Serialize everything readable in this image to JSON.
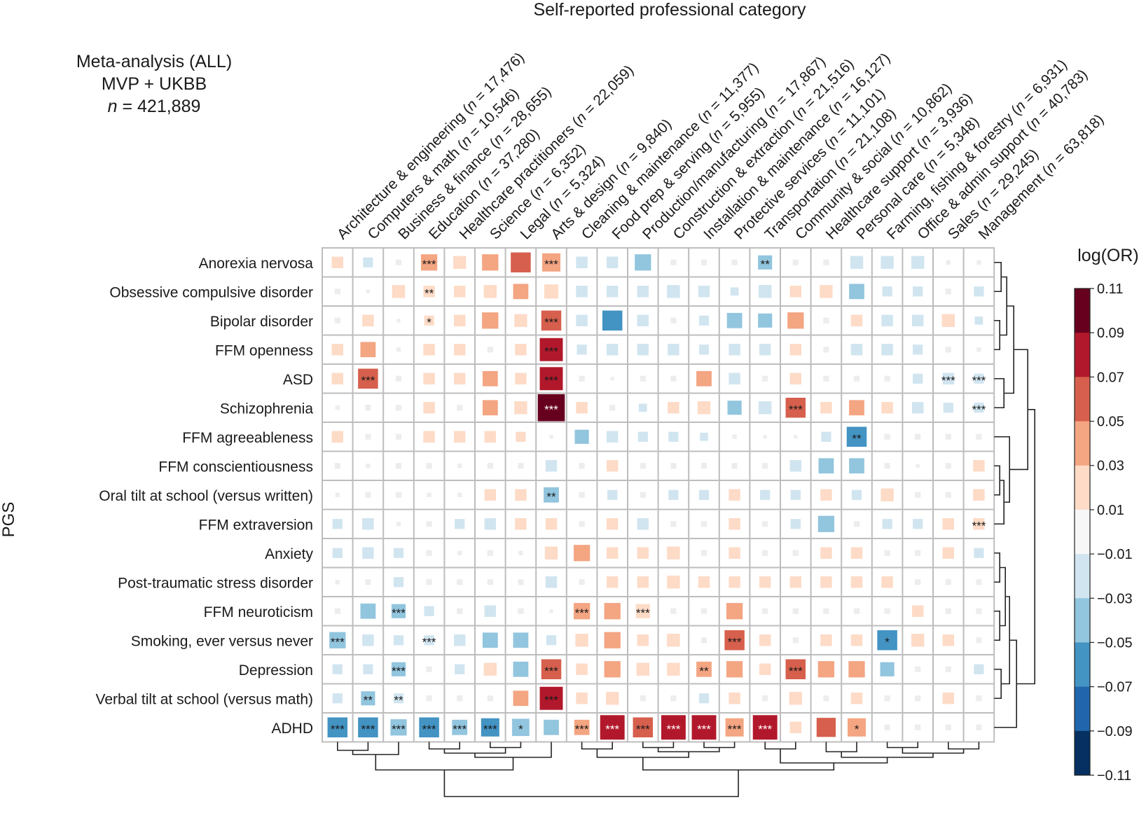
{
  "header": {
    "title": "Self-reported professional category",
    "info_line1": "Meta-analysis (ALL)",
    "info_line2": "MVP + UKBB",
    "info_n_italic": "n",
    "info_n_rest": " = 421,889"
  },
  "chart_data": {
    "type": "heatmap",
    "title": "Self-reported professional category",
    "ylabel": "PGS",
    "colorbar_label": "log(OR)",
    "colorbar_ticks": [
      "0.11",
      "0.09",
      "0.07",
      "0.05",
      "0.03",
      "0.01",
      "−0.01",
      "−0.03",
      "−0.05",
      "−0.07",
      "−0.09",
      "−0.11"
    ],
    "color_scale": {
      "range": [
        -0.11,
        0.11
      ],
      "colors": [
        "#67001f",
        "#b2182b",
        "#d6604d",
        "#f4a582",
        "#fddbc7",
        "#f7f7f7",
        "#d1e5f0",
        "#92c5de",
        "#4393c3",
        "#2166ac",
        "#053061"
      ]
    },
    "columns": [
      {
        "name": "Architecture & engineering",
        "n": "17,476"
      },
      {
        "name": "Computers & math",
        "n": "10,546"
      },
      {
        "name": "Business & finance",
        "n": "28,655"
      },
      {
        "name": "Education",
        "n": "37,280"
      },
      {
        "name": "Healthcare practitioners",
        "n": "22,059"
      },
      {
        "name": "Science",
        "n": "6,352"
      },
      {
        "name": "Legal",
        "n": "5,324"
      },
      {
        "name": "Arts & design",
        "n": "9,840"
      },
      {
        "name": "Cleaning & maintenance",
        "n": "11,377"
      },
      {
        "name": "Food prep & serving",
        "n": "5,955"
      },
      {
        "name": "Production/manufacturing",
        "n": "17,867"
      },
      {
        "name": "Construction & extraction",
        "n": "21,516"
      },
      {
        "name": "Installation & maintenance",
        "n": "16,127"
      },
      {
        "name": "Protective services",
        "n": "11,101"
      },
      {
        "name": "Transportation",
        "n": "21,108"
      },
      {
        "name": "Community & social",
        "n": "10,862"
      },
      {
        "name": "Healthcare support",
        "n": "3,936"
      },
      {
        "name": "Personal care",
        "n": "5,348"
      },
      {
        "name": "Farming, fishing & forestry",
        "n": "6,931"
      },
      {
        "name": "Office & admin support",
        "n": "40,783"
      },
      {
        "name": "Sales",
        "n": "29,245"
      },
      {
        "name": "Management",
        "n": "63,818"
      }
    ],
    "rows": [
      "Anorexia nervosa",
      "Obsessive compulsive disorder",
      "Bipolar disorder",
      "FFM openness",
      "ASD",
      "Schizophrenia",
      "FFM agreeableness",
      "FFM conscientiousness",
      "Oral tilt at school (versus written)",
      "FFM extraversion",
      "Anxiety",
      "Post-traumatic stress disorder",
      "FFM neuroticism",
      "Smoking, ever versus never",
      "Depression",
      "Verbal tilt at school (versus math)",
      "ADHD"
    ],
    "values": [
      [
        0.02,
        -0.015,
        -0.005,
        0.04,
        0.025,
        0.04,
        0.06,
        0.05,
        -0.02,
        -0.02,
        -0.04,
        -0.005,
        -0.005,
        -0.005,
        -0.03,
        -0.005,
        -0.005,
        -0.025,
        -0.025,
        -0.025,
        -0.003,
        -0.003
      ],
      [
        -0.005,
        -0.002,
        0.025,
        0.02,
        0.02,
        0.025,
        0.035,
        0.03,
        -0.02,
        -0.02,
        -0.02,
        -0.025,
        -0.02,
        -0.01,
        -0.025,
        0.02,
        0.025,
        -0.035,
        -0.015,
        -0.015,
        -0.005,
        -0.015
      ],
      [
        -0.005,
        0.02,
        -0.002,
        0.015,
        0.02,
        0.04,
        0.025,
        0.06,
        -0.02,
        -0.06,
        -0.02,
        -0.005,
        -0.015,
        -0.035,
        -0.03,
        0.04,
        -0.005,
        0.02,
        -0.02,
        -0.02,
        0.025,
        -0.01
      ],
      [
        0.02,
        0.035,
        -0.003,
        0.02,
        0.02,
        -0.005,
        0.02,
        0.08,
        -0.015,
        -0.02,
        -0.02,
        -0.02,
        -0.015,
        -0.02,
        -0.02,
        0.02,
        -0.005,
        -0.02,
        -0.02,
        -0.015,
        -0.005,
        -0.003
      ],
      [
        0.02,
        0.06,
        -0.005,
        0.02,
        0.02,
        0.035,
        0.02,
        0.08,
        -0.005,
        -0.002,
        -0.005,
        -0.005,
        0.035,
        -0.02,
        -0.005,
        0.02,
        -0.005,
        -0.005,
        -0.005,
        -0.015,
        -0.02,
        -0.015
      ],
      [
        -0.003,
        -0.005,
        -0.005,
        0.02,
        -0.005,
        0.035,
        0.025,
        0.11,
        0.02,
        -0.005,
        -0.01,
        0.02,
        0.025,
        -0.03,
        -0.025,
        0.06,
        0.02,
        0.035,
        0.02,
        -0.02,
        -0.015,
        -0.015
      ],
      [
        0.02,
        -0.005,
        -0.005,
        0.02,
        0.02,
        0.02,
        0.015,
        -0.002,
        -0.03,
        -0.02,
        -0.015,
        -0.015,
        -0.01,
        -0.003,
        -0.002,
        -0.002,
        -0.015,
        -0.06,
        -0.005,
        -0.005,
        -0.005,
        -0.005
      ],
      [
        -0.005,
        -0.003,
        -0.005,
        -0.005,
        -0.003,
        -0.005,
        -0.005,
        -0.02,
        -0.005,
        0.02,
        -0.005,
        -0.005,
        -0.005,
        -0.005,
        -0.005,
        -0.02,
        -0.035,
        -0.035,
        -0.005,
        -0.002,
        -0.005,
        0.02
      ],
      [
        -0.003,
        -0.005,
        -0.005,
        -0.003,
        -0.003,
        0.02,
        0.02,
        -0.035,
        -0.005,
        -0.015,
        -0.005,
        -0.015,
        -0.015,
        0.02,
        -0.015,
        -0.015,
        0.02,
        -0.015,
        0.025,
        -0.005,
        -0.005,
        0.02
      ],
      [
        -0.015,
        -0.02,
        -0.003,
        -0.005,
        -0.015,
        -0.02,
        0.02,
        0.02,
        -0.005,
        0.02,
        -0.02,
        -0.005,
        -0.005,
        0.02,
        -0.005,
        -0.015,
        -0.04,
        -0.005,
        -0.015,
        -0.015,
        0.02,
        0.02
      ],
      [
        -0.015,
        -0.02,
        -0.015,
        -0.005,
        -0.003,
        -0.005,
        -0.003,
        0.025,
        0.04,
        0.02,
        0.02,
        0.025,
        -0.005,
        0.02,
        -0.005,
        -0.005,
        0.02,
        0.02,
        -0.005,
        -0.005,
        0.02,
        -0.015
      ],
      [
        -0.003,
        -0.005,
        -0.015,
        -0.005,
        -0.005,
        -0.005,
        -0.005,
        -0.02,
        -0.005,
        0.02,
        0.02,
        0.025,
        0.02,
        0.02,
        0.02,
        0.02,
        0.02,
        0.02,
        0.02,
        -0.005,
        -0.005,
        -0.005
      ],
      [
        -0.005,
        -0.035,
        -0.03,
        -0.015,
        -0.005,
        -0.02,
        -0.005,
        -0.002,
        0.04,
        0.04,
        0.03,
        -0.005,
        -0.005,
        0.04,
        -0.005,
        -0.005,
        -0.005,
        -0.005,
        -0.005,
        0.02,
        -0.005,
        -0.005
      ],
      [
        -0.04,
        -0.02,
        -0.015,
        -0.015,
        -0.02,
        -0.035,
        -0.035,
        -0.015,
        0.025,
        0.04,
        0.02,
        0.025,
        -0.005,
        0.06,
        0.02,
        -0.005,
        0.02,
        0.02,
        -0.06,
        0.025,
        0.02,
        -0.005
      ],
      [
        -0.015,
        -0.015,
        -0.03,
        -0.005,
        -0.015,
        0.025,
        -0.035,
        0.06,
        0.02,
        0.04,
        0.025,
        0.025,
        0.035,
        0.04,
        0.02,
        0.06,
        0.04,
        0.04,
        -0.03,
        -0.005,
        -0.005,
        -0.015
      ],
      [
        -0.015,
        -0.03,
        -0.015,
        -0.005,
        -0.005,
        -0.005,
        0.035,
        0.08,
        0.02,
        0.025,
        -0.005,
        -0.005,
        -0.015,
        0.02,
        -0.005,
        0.025,
        -0.005,
        0.02,
        -0.005,
        -0.005,
        0.02,
        -0.005
      ],
      [
        -0.06,
        -0.06,
        -0.04,
        -0.06,
        -0.035,
        -0.05,
        -0.045,
        -0.035,
        0.035,
        0.09,
        0.06,
        0.09,
        0.09,
        0.05,
        0.09,
        0.02,
        0.055,
        0.05,
        -0.005,
        -0.005,
        -0.005,
        -0.005
      ]
    ],
    "significance": [
      [
        "",
        "",
        "",
        "***",
        "",
        "",
        "",
        "***",
        "",
        "",
        "",
        "",
        "",
        "",
        "**",
        "",
        "",
        "",
        "",
        "",
        "",
        ""
      ],
      [
        "",
        "",
        "",
        "**",
        "",
        "",
        "",
        "",
        "",
        "",
        "",
        "",
        "",
        "",
        "",
        "",
        "",
        "",
        "",
        "",
        "",
        ""
      ],
      [
        "",
        "",
        "",
        "*",
        "",
        "",
        "",
        "***",
        "",
        "",
        "",
        "",
        "",
        "",
        "",
        "",
        "",
        "",
        "",
        "",
        "",
        ""
      ],
      [
        "",
        "",
        "",
        "",
        "",
        "",
        "",
        "***",
        "",
        "",
        "",
        "",
        "",
        "",
        "",
        "",
        "",
        "",
        "",
        "",
        "",
        ""
      ],
      [
        "",
        "***",
        "",
        "",
        "",
        "",
        "",
        "***",
        "",
        "",
        "",
        "",
        "",
        "",
        "",
        "",
        "",
        "",
        "",
        "",
        "***",
        "***"
      ],
      [
        "",
        "",
        "",
        "",
        "",
        "",
        "",
        "***",
        "",
        "",
        "",
        "",
        "",
        "",
        "",
        "***",
        "",
        "",
        "",
        "",
        "",
        "***"
      ],
      [
        "",
        "",
        "",
        "",
        "",
        "",
        "",
        "",
        "",
        "",
        "",
        "",
        "",
        "",
        "",
        "",
        "",
        "**",
        "",
        "",
        "",
        ""
      ],
      [
        "",
        "",
        "",
        "",
        "",
        "",
        "",
        "",
        "",
        "",
        "",
        "",
        "",
        "",
        "",
        "",
        "",
        "",
        "",
        "",
        "",
        ""
      ],
      [
        "",
        "",
        "",
        "",
        "",
        "",
        "",
        "**",
        "",
        "",
        "",
        "",
        "",
        "",
        "",
        "",
        "",
        "",
        "",
        "",
        "",
        ""
      ],
      [
        "",
        "",
        "",
        "",
        "",
        "",
        "",
        "",
        "",
        "",
        "",
        "",
        "",
        "",
        "",
        "",
        "",
        "",
        "",
        "",
        "",
        "***"
      ],
      [
        "",
        "",
        "",
        "",
        "",
        "",
        "",
        "",
        "",
        "",
        "",
        "",
        "",
        "",
        "",
        "",
        "",
        "",
        "",
        "",
        "",
        ""
      ],
      [
        "",
        "",
        "",
        "",
        "",
        "",
        "",
        "",
        "",
        "",
        "",
        "",
        "",
        "",
        "",
        "",
        "",
        "",
        "",
        "",
        "",
        ""
      ],
      [
        "",
        "",
        "***",
        "",
        "",
        "",
        "",
        "",
        "***",
        "",
        "***",
        "",
        "",
        "",
        "",
        "",
        "",
        "",
        "",
        "",
        "",
        ""
      ],
      [
        "***",
        "",
        "",
        "***",
        "",
        "",
        "",
        "",
        "",
        "",
        "",
        "",
        "",
        "***",
        "",
        "",
        "",
        "",
        "*",
        "",
        "",
        ""
      ],
      [
        "",
        "",
        "***",
        "",
        "",
        "",
        "",
        "***",
        "",
        "",
        "",
        "",
        "**",
        "",
        "",
        "***",
        "",
        "",
        "",
        "",
        "",
        ""
      ],
      [
        "",
        "**",
        "**",
        "",
        "",
        "",
        "",
        "***",
        "",
        "",
        "",
        "",
        "",
        "",
        "",
        "",
        "",
        "",
        "",
        "",
        "",
        ""
      ],
      [
        "***",
        "***",
        "***",
        "***",
        "***",
        "***",
        "*",
        "",
        "***",
        "***",
        "***",
        "***",
        "***",
        "***",
        "***",
        "",
        "",
        "*",
        "",
        "",
        "",
        ""
      ]
    ]
  }
}
